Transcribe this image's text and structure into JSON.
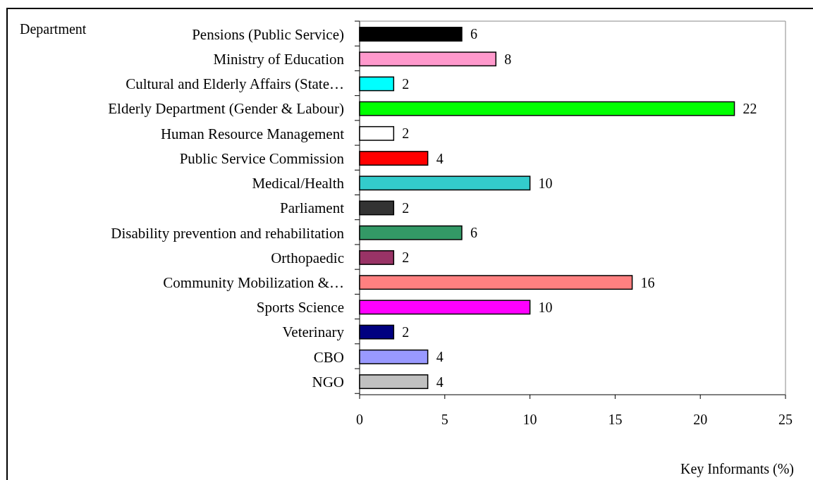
{
  "chart_data": {
    "type": "bar",
    "orientation": "horizontal",
    "ylabel": "Department",
    "xlabel": "Key Informants (%)",
    "categories": [
      "Pensions (Public Service)",
      "Ministry of Education",
      "Cultural and Elderly Affairs (State…",
      "Elderly Department (Gender & Labour)",
      "Human Resource Management",
      "Public Service Commission",
      "Medical/Health",
      "Parliament",
      "Disability prevention and rehabilitation",
      "Orthopaedic",
      "Community Mobilization &…",
      "Sports Science",
      "Veterinary",
      "CBO",
      "NGO"
    ],
    "values": [
      6,
      8,
      2,
      22,
      2,
      4,
      10,
      2,
      6,
      2,
      16,
      10,
      2,
      4,
      4
    ],
    "colors": [
      "#000000",
      "#ff99cc",
      "#00ffff",
      "#00ff00",
      "#ffffff",
      "#ff0000",
      "#33cccc",
      "#333333",
      "#339966",
      "#993366",
      "#ff8080",
      "#ff00ff",
      "#000080",
      "#9999ff",
      "#c0c0c0"
    ],
    "xlim": [
      0,
      25
    ],
    "xticks": [
      0,
      5,
      10,
      15,
      20,
      25
    ],
    "data_labels": true,
    "grid": false
  }
}
